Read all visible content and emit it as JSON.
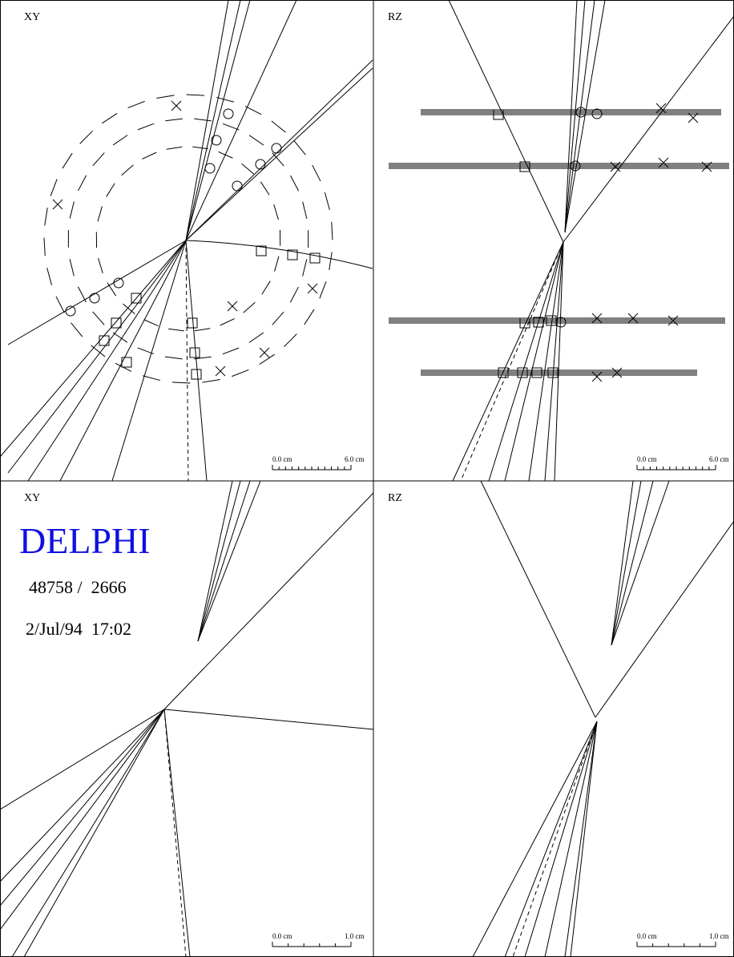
{
  "panels": [
    {
      "view": "XY",
      "scale": {
        "start": "0.0 cm",
        "end": "6.0 cm"
      }
    },
    {
      "view": "RZ",
      "scale": {
        "start": "0.0 cm",
        "end": "6.0 cm"
      }
    },
    {
      "view": "XY",
      "scale": {
        "start": "0.0 cm",
        "end": "1.0 cm"
      }
    },
    {
      "view": "RZ",
      "scale": {
        "start": "0.0 cm",
        "end": "1.0 cm"
      }
    }
  ],
  "event": {
    "experiment": "DELPHI",
    "run_event": "48758 /  2666",
    "date": "2/Jul/94  17:02"
  }
}
